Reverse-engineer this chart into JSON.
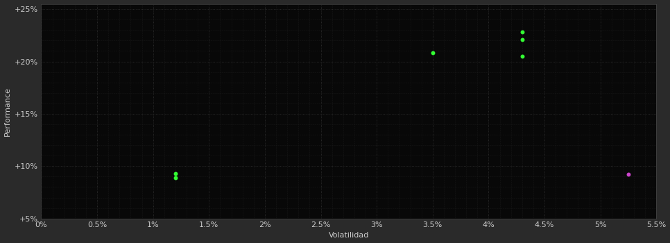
{
  "background_color": "#2a2a2a",
  "plot_bg_color": "#080808",
  "grid_color": "#333333",
  "subgrid_color": "#222222",
  "xlabel": "Volatilidad",
  "ylabel": "Performance",
  "xlim": [
    0.0,
    0.055
  ],
  "ylim": [
    0.05,
    0.255
  ],
  "xticks_major": [
    0.0,
    0.005,
    0.01,
    0.015,
    0.02,
    0.025,
    0.03,
    0.035,
    0.04,
    0.045,
    0.05,
    0.055
  ],
  "yticks_major": [
    0.05,
    0.1,
    0.15,
    0.2,
    0.25
  ],
  "green_points": [
    [
      0.012,
      0.089
    ],
    [
      0.012,
      0.093
    ],
    [
      0.035,
      0.208
    ],
    [
      0.043,
      0.228
    ],
    [
      0.043,
      0.221
    ],
    [
      0.043,
      0.205
    ]
  ],
  "magenta_points": [
    [
      0.0525,
      0.092
    ]
  ],
  "green_color": "#33ff33",
  "magenta_color": "#cc44cc",
  "text_color": "#cccccc",
  "axis_label_color": "#cccccc",
  "tick_fontsize": 8,
  "axis_fontsize": 8,
  "marker_size": 18
}
